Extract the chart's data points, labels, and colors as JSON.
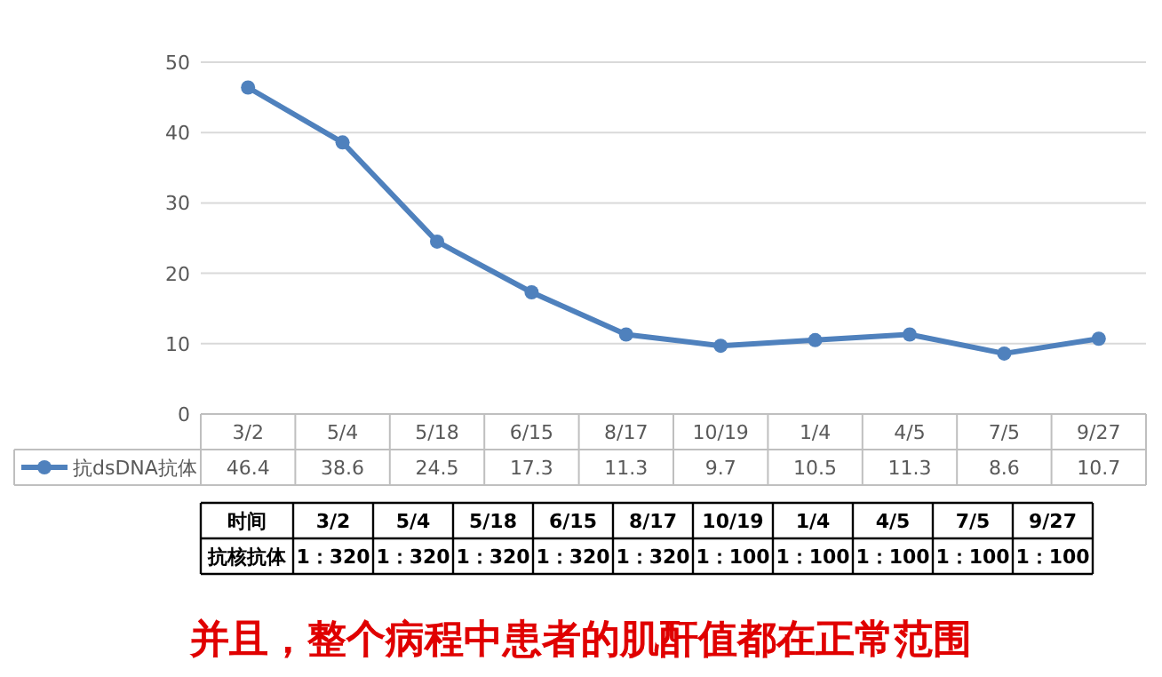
{
  "chart_data": [
    {
      "type": "line",
      "categories": [
        "3/2",
        "5/4",
        "5/18",
        "6/15",
        "8/17",
        "10/19",
        "1/4",
        "4/5",
        "7/5",
        "9/27"
      ],
      "ylim": [
        0,
        50
      ],
      "yticks": [
        0,
        10,
        20,
        30,
        40,
        50
      ],
      "grid": "y",
      "legend": "bottom",
      "marker": "circle",
      "line_style": "solid",
      "series": [
        {
          "name": "抗dsDNA抗体",
          "color": "#4f81bd",
          "values": [
            46.4,
            38.6,
            24.5,
            17.3,
            11.3,
            9.7,
            10.5,
            11.3,
            8.6,
            10.7
          ],
          "value_labels": [
            "46.4",
            "38.6",
            "24.5",
            "17.3",
            "11.3",
            "9.7",
            "10.5",
            "11.3",
            "8.6",
            "10.7"
          ]
        }
      ]
    },
    {
      "type": "other",
      "xlabel": "时间",
      "categories": [
        "3/2",
        "5/4",
        "5/18",
        "6/15",
        "8/17",
        "10/19",
        "1/4",
        "4/5",
        "7/5",
        "9/27"
      ],
      "y_categories": [
        "抗核抗体"
      ],
      "cell_labels": [
        [
          "1：320",
          "1：320",
          "1：320",
          "1：320",
          "1：320",
          "1：100",
          "1：100",
          "1：100",
          "1：100",
          "1：100"
        ]
      ],
      "annotations": [
        "并且，整个病程中患者的肌酐值都在正常范围"
      ]
    }
  ]
}
